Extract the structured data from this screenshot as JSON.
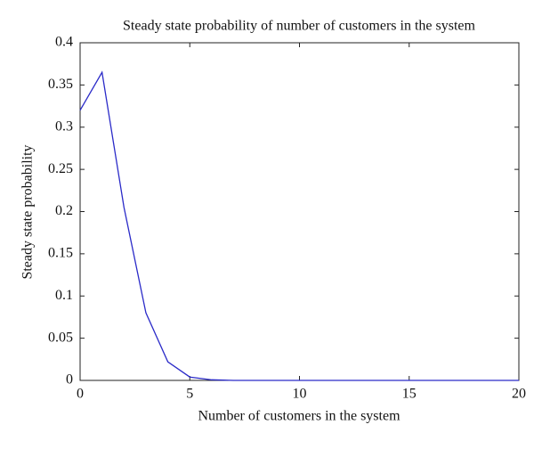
{
  "chart_data": {
    "type": "line",
    "title": "Steady state probability of number of customers in the system",
    "x_label": "Number of customers in the system",
    "y_label": "Steady state probability",
    "x": [
      0,
      1,
      2,
      3,
      4,
      5,
      6,
      7,
      8,
      9,
      10,
      11,
      12,
      13,
      14,
      15,
      16,
      17,
      18,
      19,
      20
    ],
    "series": [
      {
        "color": "#2a2ac8",
        "values": [
          0.32,
          0.365,
          0.205,
          0.08,
          0.022,
          0.004,
          0.0007,
          0,
          0,
          0,
          0,
          0,
          0,
          0,
          0,
          0,
          0,
          0,
          0,
          0,
          0
        ]
      }
    ],
    "xlim": [
      0,
      20
    ],
    "xticks": [
      0,
      5,
      10,
      15,
      20
    ],
    "ylim": [
      0,
      0.4
    ],
    "yticks": [
      0,
      0.05,
      0.1,
      0.15,
      0.2,
      0.25,
      0.3,
      0.35,
      0.4
    ],
    "grid": false
  }
}
